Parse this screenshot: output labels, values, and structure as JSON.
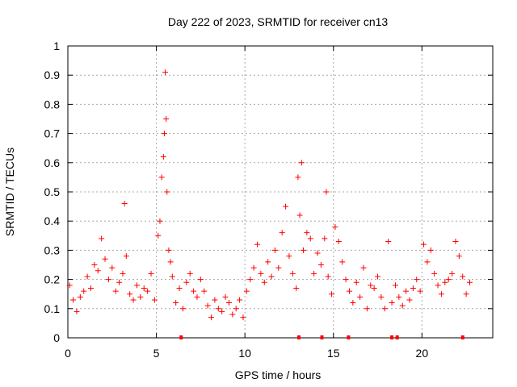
{
  "chart_data": {
    "type": "scatter",
    "title": "Day 222 of 2023, SRMTID for receiver cn13",
    "xlabel": "GPS time / hours",
    "ylabel": "SRMTID / TECUs",
    "xlim": [
      0,
      24
    ],
    "ylim": [
      0,
      1
    ],
    "x_ticks": [
      0,
      5,
      10,
      15,
      20
    ],
    "x_tick_labels": [
      "0",
      "5",
      "10",
      "15",
      "20"
    ],
    "y_ticks": [
      0,
      0.1,
      0.2,
      0.3,
      0.4,
      0.5,
      0.6,
      0.7,
      0.8,
      0.9,
      1
    ],
    "y_tick_labels": [
      "0",
      "0.1",
      "0.2",
      "0.3",
      "0.4",
      "0.5",
      "0.6",
      "0.7",
      "0.8",
      "0.9",
      "1"
    ],
    "grid": true,
    "marker": "+",
    "color": "#ff0000",
    "series": [
      {
        "name": "SRMTID",
        "x": [
          0.1,
          0.3,
          0.5,
          0.7,
          0.9,
          1.1,
          1.3,
          1.5,
          1.7,
          1.9,
          2.1,
          2.3,
          2.5,
          2.7,
          2.9,
          3.1,
          3.2,
          3.3,
          3.5,
          3.7,
          3.9,
          4.1,
          4.3,
          4.5,
          4.7,
          4.9,
          5.1,
          5.2,
          5.3,
          5.4,
          5.45,
          5.5,
          5.55,
          5.6,
          5.7,
          5.8,
          5.9,
          6.1,
          6.3,
          6.5,
          6.7,
          6.9,
          7.1,
          7.3,
          7.5,
          7.7,
          7.9,
          8.1,
          8.3,
          8.5,
          8.7,
          8.9,
          9.1,
          9.3,
          9.5,
          9.7,
          9.9,
          10.1,
          10.3,
          10.5,
          10.7,
          10.9,
          11.1,
          11.3,
          11.5,
          11.7,
          11.9,
          12.1,
          12.3,
          12.5,
          12.7,
          12.9,
          13.0,
          13.1,
          13.2,
          13.3,
          13.5,
          13.7,
          13.9,
          14.1,
          14.3,
          14.5,
          14.6,
          14.7,
          14.9,
          15.1,
          15.3,
          15.5,
          15.7,
          15.9,
          16.1,
          16.3,
          16.5,
          16.7,
          16.9,
          17.1,
          17.3,
          17.5,
          17.7,
          17.9,
          18.1,
          18.3,
          18.5,
          18.7,
          18.9,
          19.1,
          19.3,
          19.5,
          19.7,
          19.9,
          20.1,
          20.3,
          20.5,
          20.7,
          20.9,
          21.1,
          21.3,
          21.5,
          21.7,
          21.9,
          22.1,
          22.3,
          22.5,
          22.7
        ],
        "y": [
          0.18,
          0.13,
          0.09,
          0.14,
          0.16,
          0.21,
          0.17,
          0.25,
          0.23,
          0.34,
          0.27,
          0.2,
          0.24,
          0.16,
          0.19,
          0.22,
          0.46,
          0.28,
          0.15,
          0.13,
          0.18,
          0.14,
          0.17,
          0.16,
          0.22,
          0.13,
          0.35,
          0.4,
          0.55,
          0.62,
          0.7,
          0.91,
          0.75,
          0.5,
          0.3,
          0.26,
          0.21,
          0.12,
          0.17,
          0.1,
          0.19,
          0.22,
          0.16,
          0.14,
          0.2,
          0.16,
          0.11,
          0.07,
          0.13,
          0.1,
          0.09,
          0.14,
          0.12,
          0.08,
          0.1,
          0.13,
          0.07,
          0.16,
          0.2,
          0.24,
          0.32,
          0.22,
          0.19,
          0.26,
          0.21,
          0.3,
          0.24,
          0.36,
          0.45,
          0.28,
          0.22,
          0.17,
          0.55,
          0.42,
          0.6,
          0.3,
          0.36,
          0.34,
          0.22,
          0.29,
          0.25,
          0.34,
          0.5,
          0.21,
          0.15,
          0.38,
          0.33,
          0.26,
          0.2,
          0.16,
          0.12,
          0.19,
          0.14,
          0.24,
          0.1,
          0.18,
          0.17,
          0.21,
          0.14,
          0.1,
          0.33,
          0.12,
          0.18,
          0.14,
          0.11,
          0.16,
          0.13,
          0.17,
          0.2,
          0.16,
          0.32,
          0.26,
          0.3,
          0.22,
          0.18,
          0.15,
          0.19,
          0.2,
          0.22,
          0.33,
          0.28,
          0.21,
          0.15,
          0.19
        ]
      }
    ],
    "gap_markers_x": [
      6.4,
      13.05,
      14.35,
      15.85,
      18.3,
      18.6,
      22.3
    ]
  }
}
